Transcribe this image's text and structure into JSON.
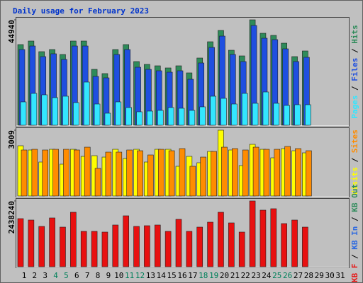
{
  "chart_data": {
    "type": "bar",
    "title": "Daily usage for February 2023",
    "categories": [
      "1",
      "2",
      "3",
      "4",
      "5",
      "6",
      "7",
      "8",
      "9",
      "10",
      "11",
      "12",
      "13",
      "14",
      "15",
      "16",
      "17",
      "18",
      "19",
      "20",
      "21",
      "22",
      "23",
      "24",
      "25",
      "26",
      "27",
      "28",
      "29",
      "30",
      "31"
    ],
    "weekend": [
      3,
      4,
      10,
      11,
      17,
      18,
      24,
      25
    ],
    "weekend_color": "#00805a",
    "weekday_color": "#000000",
    "legend_separator": " / ",
    "panels": [
      {
        "ylim": [
          0,
          44940
        ],
        "yticks": [
          44940
        ],
        "series": [
          {
            "name": "Pages",
            "color": "#33e6ff",
            "values": [
              9953,
              13572,
              12969,
              11762,
              12366,
              9651,
              18398,
              9048,
              5127,
              9953,
              7540,
              5730,
              6032,
              6334,
              7540,
              7238,
              6334,
              7842,
              12366,
              11461,
              9048,
              13572,
              9350,
              14175,
              9350,
              8445,
              8746,
              8746
            ]
          },
          {
            "name": "Files",
            "color": "#1f4fe0",
            "values": [
              32271,
              33779,
              29255,
              30462,
              28049,
              33779,
              33779,
              20810,
              20207,
              30160,
              32271,
              24731,
              23826,
              23223,
              22620,
              23223,
              19604,
              26541,
              33176,
              38002,
              30160,
              27144,
              42526,
              37097,
              36494,
              32573,
              27144,
              28954
            ]
          },
          {
            "name": "Hits",
            "color": "#2e8b5a",
            "values": [
              34382,
              35890,
              31366,
              32271,
              30160,
              35890,
              35890,
              23826,
              22017,
              32271,
              34382,
              27144,
              25938,
              25334,
              24430,
              25334,
              22318,
              28652,
              35589,
              40414,
              31970,
              29557,
              44940,
              39208,
              38303,
              34986,
              29255,
              31668
            ]
          }
        ]
      },
      {
        "ylim": [
          0,
          3009
        ],
        "yticks": [
          3009
        ],
        "series": [
          {
            "name": "Visits",
            "color": "#ffff00",
            "values": [
              2297,
              2103,
              1553,
              2135,
              1456,
              2135,
              1812,
              1844,
              1779,
              2135,
              1715,
              2135,
              1553,
              2135,
              2135,
              1359,
              1812,
              1521,
              2038,
              3009,
              2103,
              1391,
              2362,
              2135,
              1747,
              2167,
              2070,
              1973
            ]
          },
          {
            "name": "Sites",
            "color": "#ff8c00",
            "values": [
              2103,
              2135,
              2103,
              2135,
              2135,
              2103,
              2232,
              1262,
              2006,
              2006,
              2103,
              2070,
              1876,
              2135,
              2070,
              2167,
              1359,
              1779,
              2038,
              2232,
              2167,
              2103,
              2232,
              2135,
              2135,
              2265,
              2167,
              2070
            ]
          }
        ]
      },
      {
        "ylim": [
          0,
          2438240
        ],
        "yticks": [
          2438240
        ],
        "series": [
          {
            "name": "KB F",
            "color": "#e81010",
            "values": [
              1782824,
              1730388,
              1494426,
              1809042,
              1468208,
              2018786,
              1310900,
              1310900,
              1284682,
              1546862,
              1887696,
              1494426,
              1520644,
              1546862,
              1310900,
              1756606,
              1310900,
              1468208,
              1651734,
              2018786,
              1625516,
              1284682,
              2438240,
              2097440,
              2149876,
              1599298,
              1730388,
              1468208
            ]
          },
          {
            "name": "KB In",
            "color": "#2e6ae0"
          },
          {
            "name": "KB Out",
            "color": "#2e8b5a"
          }
        ]
      }
    ]
  }
}
